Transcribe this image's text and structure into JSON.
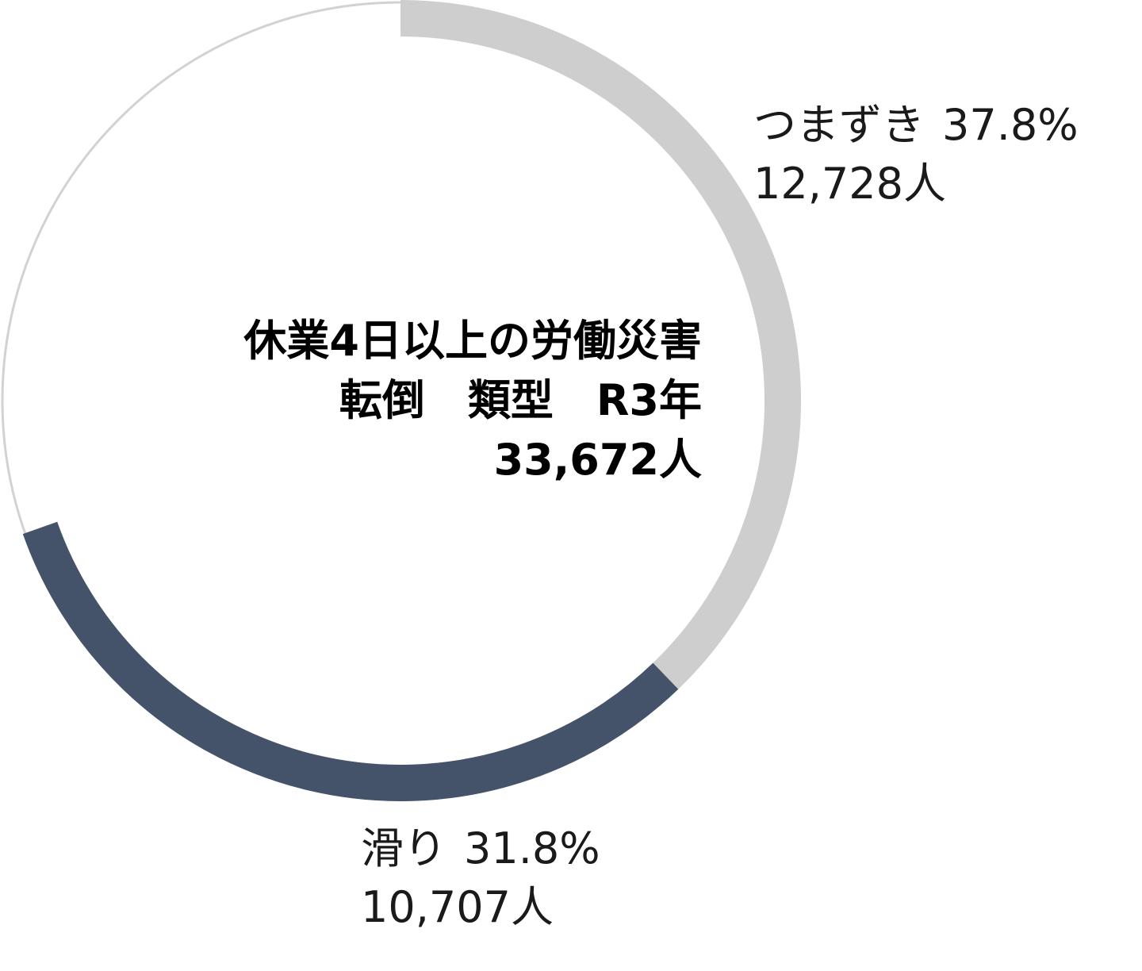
{
  "chart_data": {
    "type": "pie",
    "title": [
      "休業4日以上の労働災害",
      "転倒　類型　R3年",
      "33,672人"
    ],
    "categories": [
      "つまずき",
      "滑り"
    ],
    "values": [
      37.8,
      31.8
    ],
    "value_labels": [
      "37.8%",
      "31.8%"
    ],
    "counts": [
      "12,728人",
      "10,707人"
    ],
    "colors": [
      "#cfcecf",
      "#44536a"
    ]
  }
}
